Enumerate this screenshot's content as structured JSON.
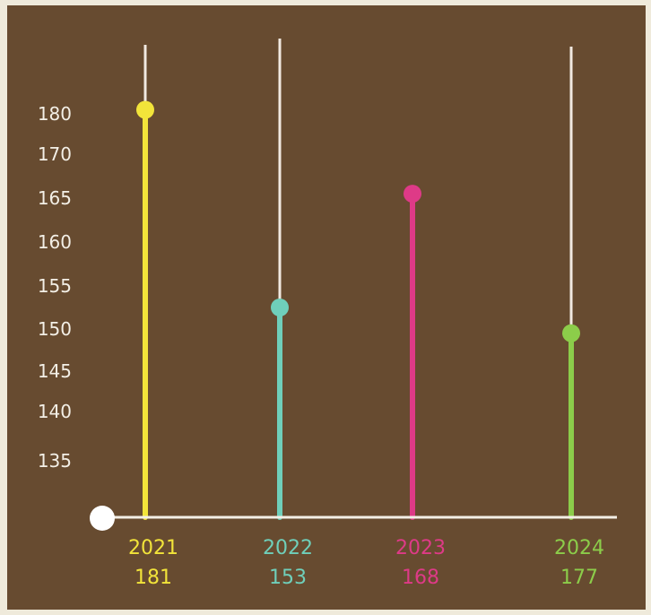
{
  "chart_data": {
    "type": "lollipop",
    "title": "",
    "xlabel": "",
    "ylabel": "",
    "categories": [
      "2021",
      "2022",
      "2023",
      "2024"
    ],
    "values": [
      181,
      153,
      168,
      177
    ],
    "marker_levels": [
      181,
      152.5,
      165.5,
      149.5
    ],
    "colors": [
      "#f2e43a",
      "#6fcfba",
      "#de3a87",
      "#8ccd4a"
    ],
    "y_ticks": [
      135,
      140,
      145,
      150,
      155,
      160,
      165,
      170,
      180
    ],
    "grid": false,
    "legend": "none",
    "background": "#674b30",
    "axis_color": "#f3efe6"
  }
}
